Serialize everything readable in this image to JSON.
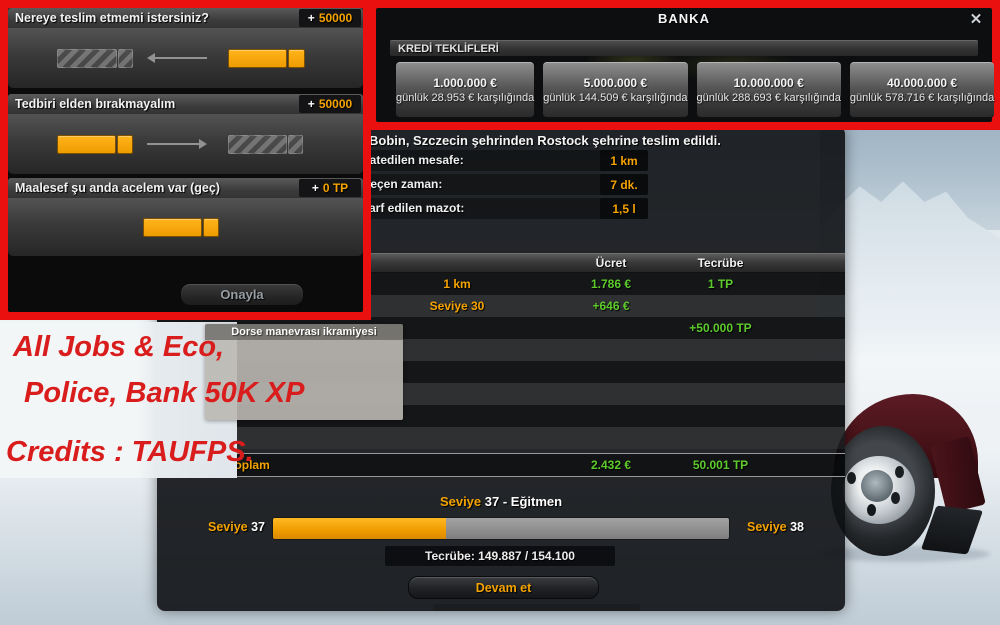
{
  "colors": {
    "frame_red": "#ea1010",
    "ad_text_red": "#d91d1d",
    "accent_orange": "#f5a300",
    "value_green": "#5ecb2d"
  },
  "decision_panel": {
    "options": [
      {
        "label": "Nereye teslim etmemi istersiniz?",
        "bonus_sign": "+",
        "bonus": "50000"
      },
      {
        "label": "Tedbiri elden bırakmayalım",
        "bonus_sign": "+",
        "bonus": "50000"
      },
      {
        "label": "Maalesef şu anda acelem var (geç)",
        "bonus_sign": "+",
        "bonus": "0 TP"
      }
    ],
    "confirm_label": "Onayla"
  },
  "bank_panel": {
    "title": "BANKA",
    "close_icon": "✕",
    "section_header": "KREDİ TEKLİFLERİ",
    "offers": [
      {
        "amount": "1.000.000 €",
        "terms": "günlük 28.953 € karşılığında"
      },
      {
        "amount": "5.000.000 €",
        "terms": "günlük 144.509 € karşılığında"
      },
      {
        "amount": "10.000.000 €",
        "terms": "günlük 288.693 € karşılığında"
      },
      {
        "amount": "40.000.000 €",
        "terms": "günlük 578.716 € karşılığında"
      }
    ]
  },
  "job_panel": {
    "title": "Bobin, Szczecin şehrinden Rostock şehrine teslim edildi.",
    "stats": [
      {
        "label": "Katedilen mesafe:",
        "value": "1 km"
      },
      {
        "label": "Geçen zaman:",
        "value": "7 dk."
      },
      {
        "label": "Sarf edilen mazot:",
        "value": "1,5 l"
      }
    ],
    "table": {
      "headers": {
        "money": "Ücret",
        "xp": "Tecrübe"
      },
      "rows": [
        {
          "label": "1 km",
          "money": "1.786 €",
          "xp": "1 TP"
        },
        {
          "label": "Seviye 30",
          "money": "+646 €",
          "xp": ""
        },
        {
          "label": "",
          "money": "",
          "xp": "+50.000 TP"
        }
      ],
      "total": {
        "label": "Toplam",
        "money": "2.432 €",
        "xp": "50.001 TP"
      }
    },
    "tooltip_title": "Dorse manevrası ikramiyesi",
    "level": {
      "heading_word": "Seviye",
      "heading_rest": "37 - Eğitmen",
      "left_word": "Seviye",
      "left_num": "37",
      "right_word": "Seviye",
      "right_num": "38",
      "progress_pct": 38,
      "xp_text": "Tecrübe: 149.887 / 154.100",
      "continue_label": "Devam et"
    }
  },
  "ad_overlay": {
    "line1": "All Jobs & Eco,",
    "line2": "Police, Bank 50K XP",
    "line3": "Credits : TAUFPS."
  }
}
